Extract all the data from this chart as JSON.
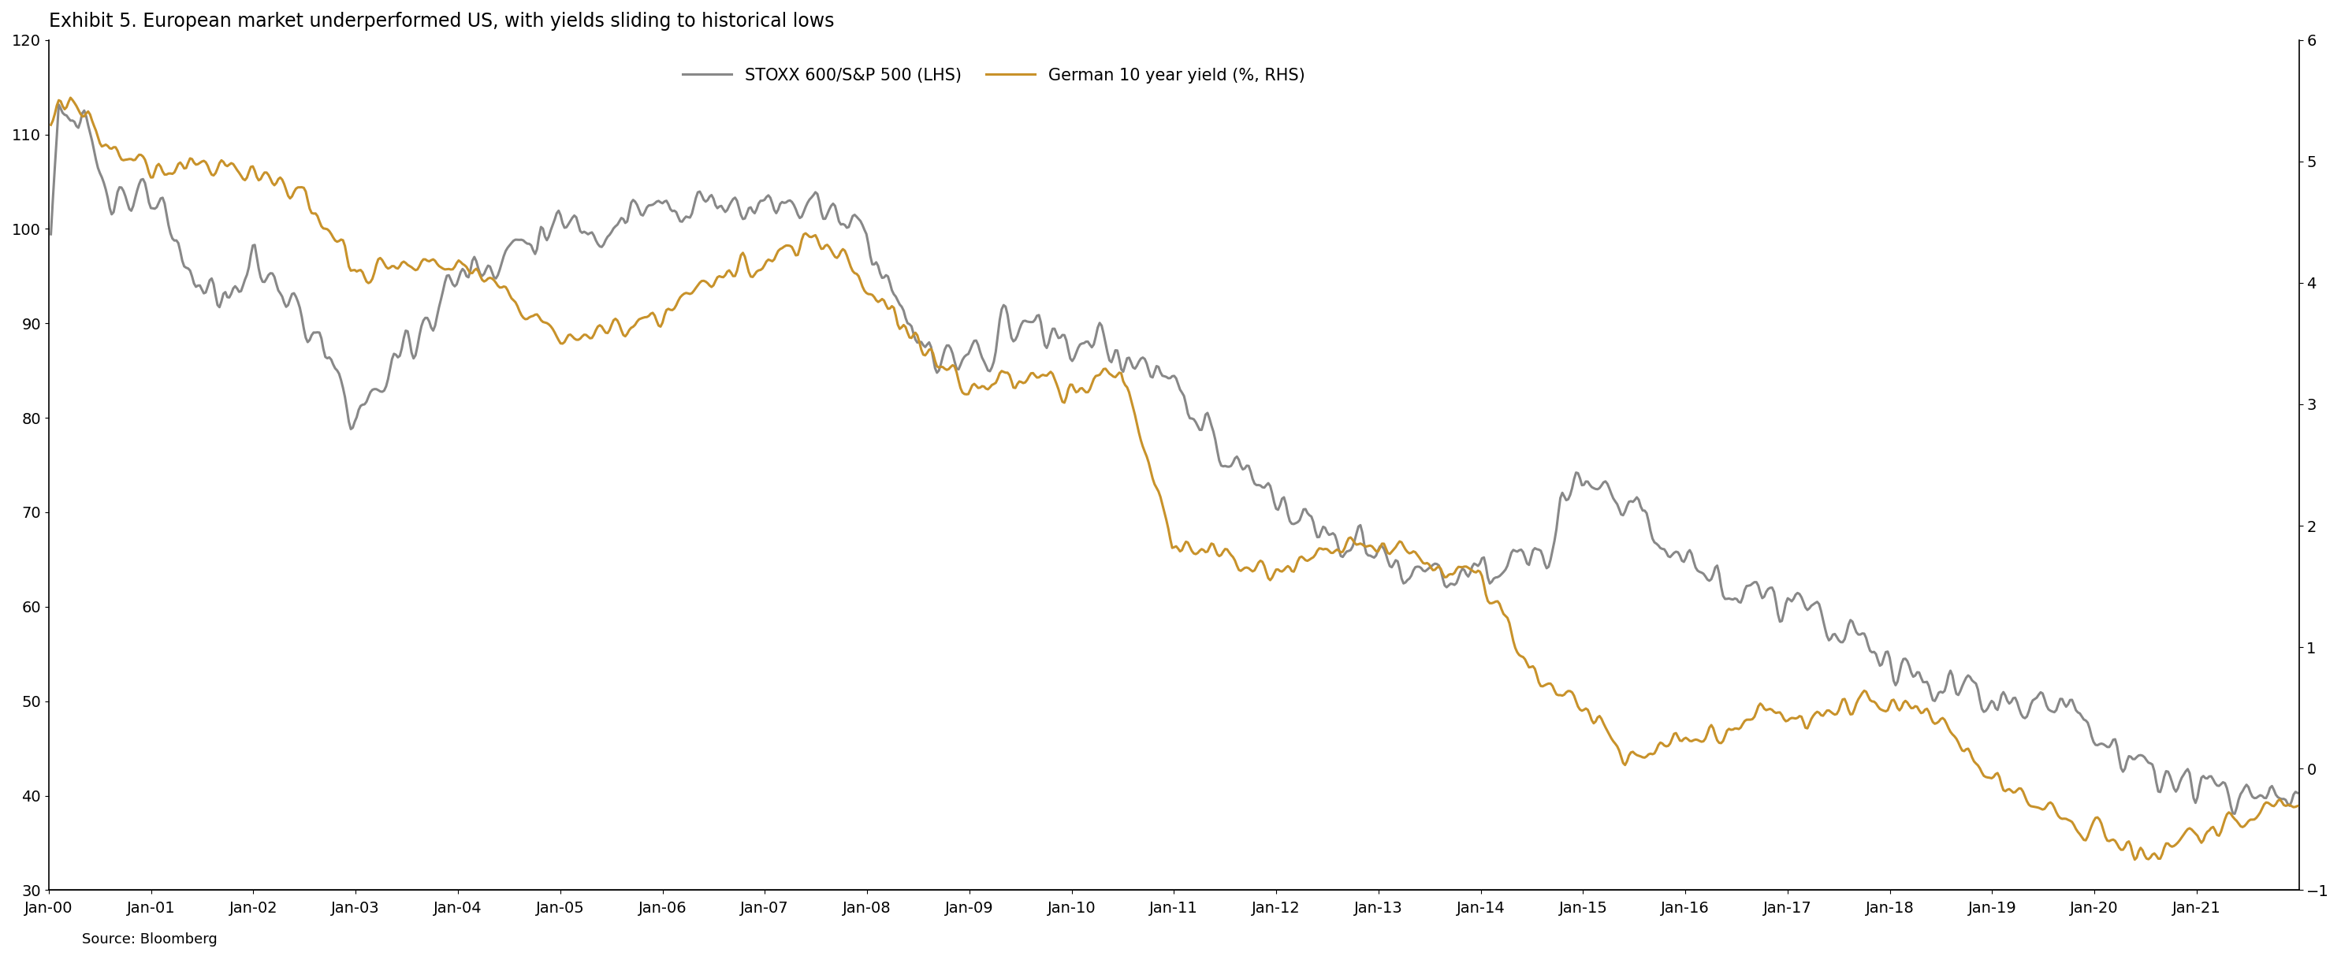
{
  "title": "Exhibit 5. European market underperformed US, with yields sliding to historical lows",
  "legend1": "STOXX 600/S&P 500 (LHS)",
  "legend2": "German 10 year yield (%, RHS)",
  "source": "Source: Bloomberg",
  "line1_color": "#888888",
  "line2_color": "#C8922A",
  "lhs_ylim": [
    30,
    120
  ],
  "lhs_yticks": [
    30,
    40,
    50,
    60,
    70,
    80,
    90,
    100,
    110,
    120
  ],
  "rhs_ylim": [
    -1,
    6
  ],
  "rhs_yticks": [
    -1,
    0,
    1,
    2,
    3,
    4,
    5,
    6
  ],
  "title_fontsize": 17,
  "legend_fontsize": 15,
  "tick_fontsize": 14,
  "source_fontsize": 13,
  "line_width": 2.2,
  "background_color": "#ffffff"
}
